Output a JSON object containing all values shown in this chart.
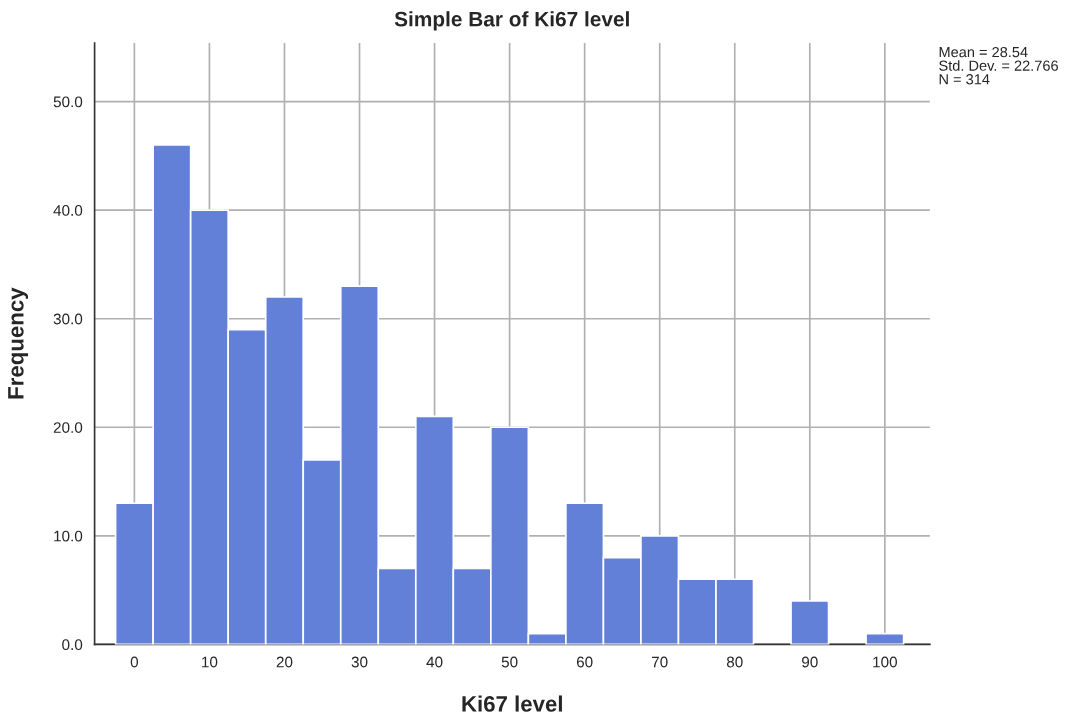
{
  "chart_data": {
    "type": "histogram",
    "title": "Simple Bar of Ki67 level",
    "xlabel": "Ki67 level",
    "ylabel": "Frequency",
    "bins": [
      -2.5,
      2.5,
      7.5,
      12.5,
      17.5,
      22.5,
      27.5,
      32.5,
      37.5,
      42.5,
      47.5,
      52.5,
      57.5,
      62.5,
      67.5,
      72.5,
      77.5,
      82.5,
      87.5,
      92.5,
      97.5,
      102.5
    ],
    "values": [
      13,
      46,
      40,
      29,
      32,
      17,
      33,
      7,
      21,
      7,
      20,
      1,
      13,
      8,
      10,
      6,
      6,
      0,
      4,
      0,
      1
    ],
    "color": "#6380d9",
    "xlim": [
      -5.3,
      106
    ],
    "xticks": [
      0,
      10,
      20,
      30,
      40,
      50,
      60,
      70,
      80,
      90,
      100
    ],
    "ylim": [
      0,
      55.4
    ],
    "yticks": [
      {
        "value": 0,
        "label": "0.0"
      },
      {
        "value": 10,
        "label": "10.0"
      },
      {
        "value": 20,
        "label": "20.0"
      },
      {
        "value": 30,
        "label": "30.0"
      },
      {
        "value": 40,
        "label": "40.0"
      },
      {
        "value": 50,
        "label": "50.0"
      }
    ],
    "grid": true,
    "annotations": [
      "Mean = 28.54\nStd. Dev. = 22.766\nN = 314"
    ]
  }
}
